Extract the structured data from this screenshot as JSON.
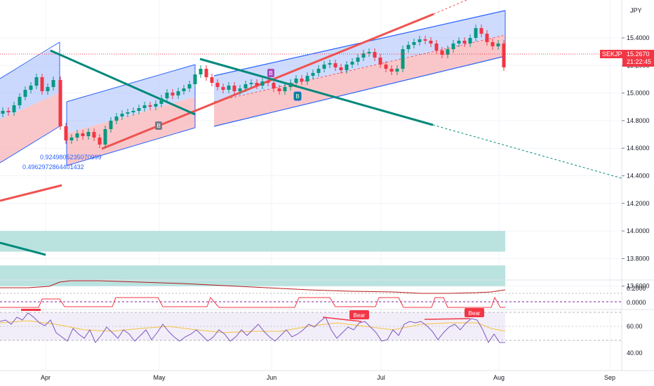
{
  "header": {
    "currency": "JPY"
  },
  "price_tag": {
    "symbol": "SEKJPY",
    "price": "15.2670",
    "countdown": "21:22:45"
  },
  "fib_labels": [
    "0.9249805235070999",
    "0.4962972864401432"
  ],
  "chart_data": [
    {
      "type": "candlestick",
      "title": "",
      "ylim": [
        13.5,
        16.12
      ],
      "yticks": [
        "15.4000",
        "15.2000",
        "15.0000",
        "14.8000",
        "14.6000",
        "14.4000",
        "14.2000",
        "14.0000",
        "13.8000",
        "13.6000"
      ],
      "xticks": [
        "Apr",
        "May",
        "Jun",
        "Jul",
        "Aug",
        "Sep"
      ],
      "last_price": 15.267,
      "zones": [
        {
          "y1": 14.0,
          "y2": 13.85,
          "color": "#b2dfdb"
        },
        {
          "y1": 13.75,
          "y2": 13.6,
          "color": "#b2dfdb"
        }
      ],
      "badges": [
        "B",
        "B",
        "B"
      ]
    },
    {
      "type": "line",
      "title": "",
      "ylim": [
        -0.12,
        0.26
      ],
      "yticks": [
        "0.2000",
        "0.0000"
      ]
    },
    {
      "type": "line",
      "title": "",
      "ylim": [
        25,
        75
      ],
      "yticks": [
        "60.00",
        "40.00"
      ],
      "signal_labels": [
        "Bear",
        "Bear"
      ]
    }
  ],
  "colors": {
    "up": "#089981",
    "down": "#f23645",
    "channel": "#2962ff",
    "trend": "#00897b",
    "red_line": "#ef5350"
  }
}
